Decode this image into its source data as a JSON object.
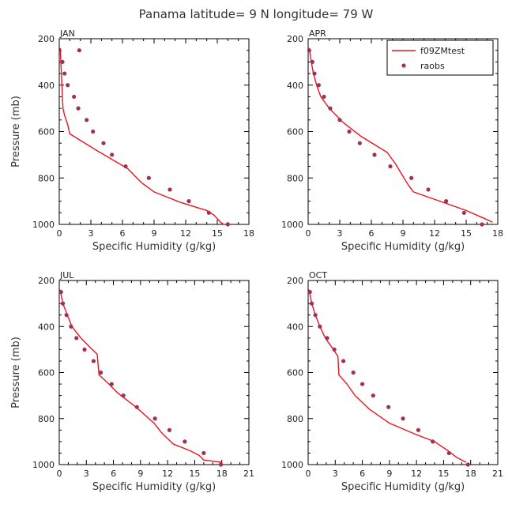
{
  "figure_title": "Panama  latitude= 9 N longitude= 79 W",
  "legend": {
    "model_label": "f09ZMtest",
    "obs_label": "raobs"
  },
  "colors": {
    "model": "#e8141e",
    "obs": "#a0305a",
    "axis": "#000000"
  },
  "chart_data": [
    {
      "type": "line",
      "panel": "JAN",
      "xlabel": "Specific Humidity (g/kg)",
      "ylabel": "Pressure (mb)",
      "xlim": [
        0,
        18
      ],
      "xticks": [
        0,
        3,
        6,
        9,
        12,
        15,
        18
      ],
      "ylim": [
        1000,
        200
      ],
      "yticks": [
        200,
        400,
        600,
        800,
        1000
      ],
      "series": [
        {
          "name": "f09ZMtest",
          "kind": "line",
          "points": [
            [
              0.1,
              240
            ],
            [
              0.15,
              300
            ],
            [
              0.2,
              350
            ],
            [
              0.25,
              400
            ],
            [
              0.3,
              450
            ],
            [
              0.35,
              500
            ],
            [
              0.5,
              530
            ],
            [
              0.8,
              570
            ],
            [
              1.0,
              610
            ],
            [
              3.5,
              680
            ],
            [
              6.5,
              760
            ],
            [
              7.8,
              820
            ],
            [
              9.0,
              860
            ],
            [
              11.5,
              905
            ],
            [
              14.0,
              940
            ],
            [
              14.7,
              960
            ],
            [
              15.3,
              990
            ],
            [
              15.6,
              1000
            ]
          ]
        },
        {
          "name": "raobs",
          "kind": "scatter",
          "points": [
            [
              1.9,
              250
            ],
            [
              0.3,
              300
            ],
            [
              0.5,
              350
            ],
            [
              0.8,
              400
            ],
            [
              1.4,
              450
            ],
            [
              1.8,
              500
            ],
            [
              2.6,
              550
            ],
            [
              3.2,
              600
            ],
            [
              4.2,
              650
            ],
            [
              5.0,
              700
            ],
            [
              6.3,
              750
            ],
            [
              8.5,
              800
            ],
            [
              10.5,
              850
            ],
            [
              12.3,
              900
            ],
            [
              14.2,
              950
            ],
            [
              16.0,
              1000
            ]
          ]
        }
      ]
    },
    {
      "type": "line",
      "panel": "APR",
      "xlabel": "Specific Humidity (g/kg)",
      "ylabel": "Pressure (mb)",
      "xlim": [
        0,
        18
      ],
      "xticks": [
        0,
        3,
        6,
        9,
        12,
        15,
        18
      ],
      "ylim": [
        1000,
        200
      ],
      "yticks": [
        200,
        400,
        600,
        800,
        1000
      ],
      "series": [
        {
          "name": "f09ZMtest",
          "kind": "line",
          "points": [
            [
              0.1,
              240
            ],
            [
              0.3,
              300
            ],
            [
              0.5,
              350
            ],
            [
              0.8,
              400
            ],
            [
              1.2,
              450
            ],
            [
              2.0,
              500
            ],
            [
              3.3,
              560
            ],
            [
              5.0,
              620
            ],
            [
              7.5,
              690
            ],
            [
              8.3,
              740
            ],
            [
              9.1,
              800
            ],
            [
              9.5,
              830
            ],
            [
              10.0,
              860
            ],
            [
              12.5,
              900
            ],
            [
              15.0,
              940
            ],
            [
              16.5,
              970
            ],
            [
              17.5,
              990
            ]
          ]
        },
        {
          "name": "raobs",
          "kind": "scatter",
          "points": [
            [
              0.1,
              250
            ],
            [
              0.4,
              300
            ],
            [
              0.6,
              350
            ],
            [
              1.0,
              400
            ],
            [
              1.5,
              450
            ],
            [
              2.1,
              500
            ],
            [
              3.0,
              550
            ],
            [
              3.9,
              600
            ],
            [
              4.9,
              650
            ],
            [
              6.3,
              700
            ],
            [
              7.8,
              750
            ],
            [
              9.8,
              800
            ],
            [
              11.4,
              850
            ],
            [
              13.1,
              900
            ],
            [
              14.8,
              950
            ],
            [
              16.5,
              1000
            ]
          ]
        }
      ]
    },
    {
      "type": "line",
      "panel": "JUL",
      "xlabel": "Specific Humidity (g/kg)",
      "ylabel": "Pressure (mb)",
      "xlim": [
        0,
        21
      ],
      "xticks": [
        0,
        3,
        6,
        9,
        12,
        15,
        18,
        21
      ],
      "ylim": [
        1000,
        200
      ],
      "yticks": [
        200,
        400,
        600,
        800,
        1000
      ],
      "series": [
        {
          "name": "f09ZMtest",
          "kind": "line",
          "points": [
            [
              0.1,
              240
            ],
            [
              0.4,
              300
            ],
            [
              0.9,
              350
            ],
            [
              1.4,
              400
            ],
            [
              2.4,
              450
            ],
            [
              3.4,
              490
            ],
            [
              4.2,
              520
            ],
            [
              4.4,
              610
            ],
            [
              5.5,
              650
            ],
            [
              6.5,
              690
            ],
            [
              8.5,
              750
            ],
            [
              10.5,
              820
            ],
            [
              11.3,
              860
            ],
            [
              12.6,
              910
            ],
            [
              14.5,
              940
            ],
            [
              15.5,
              960
            ],
            [
              16.0,
              980
            ],
            [
              18.0,
              990
            ]
          ]
        },
        {
          "name": "raobs",
          "kind": "scatter",
          "points": [
            [
              0.2,
              250
            ],
            [
              0.4,
              300
            ],
            [
              0.8,
              350
            ],
            [
              1.3,
              400
            ],
            [
              1.9,
              450
            ],
            [
              2.8,
              500
            ],
            [
              3.8,
              550
            ],
            [
              4.6,
              600
            ],
            [
              5.8,
              650
            ],
            [
              7.1,
              700
            ],
            [
              8.6,
              750
            ],
            [
              10.6,
              800
            ],
            [
              12.2,
              850
            ],
            [
              13.9,
              900
            ],
            [
              16.0,
              950
            ],
            [
              17.9,
              1000
            ]
          ]
        }
      ]
    },
    {
      "type": "line",
      "panel": "OCT",
      "xlabel": "Specific Humidity (g/kg)",
      "ylabel": "Pressure (mb)",
      "xlim": [
        0,
        21
      ],
      "xticks": [
        0,
        3,
        6,
        9,
        12,
        15,
        18,
        21
      ],
      "ylim": [
        1000,
        200
      ],
      "yticks": [
        200,
        400,
        600,
        800,
        1000
      ],
      "series": [
        {
          "name": "f09ZMtest",
          "kind": "line",
          "points": [
            [
              0.1,
              240
            ],
            [
              0.4,
              300
            ],
            [
              0.8,
              350
            ],
            [
              1.3,
              400
            ],
            [
              1.9,
              450
            ],
            [
              2.8,
              500
            ],
            [
              3.3,
              530
            ],
            [
              3.4,
              610
            ],
            [
              4.3,
              650
            ],
            [
              5.2,
              700
            ],
            [
              6.8,
              760
            ],
            [
              9.0,
              820
            ],
            [
              12.0,
              870
            ],
            [
              14.0,
              900
            ],
            [
              15.5,
              940
            ],
            [
              16.5,
              970
            ],
            [
              17.5,
              990
            ]
          ]
        },
        {
          "name": "raobs",
          "kind": "scatter",
          "points": [
            [
              0.2,
              250
            ],
            [
              0.4,
              300
            ],
            [
              0.8,
              350
            ],
            [
              1.3,
              400
            ],
            [
              2.1,
              450
            ],
            [
              2.9,
              500
            ],
            [
              3.9,
              550
            ],
            [
              5.0,
              600
            ],
            [
              6.0,
              650
            ],
            [
              7.2,
              700
            ],
            [
              8.9,
              750
            ],
            [
              10.5,
              800
            ],
            [
              12.2,
              850
            ],
            [
              13.8,
              900
            ],
            [
              15.6,
              950
            ],
            [
              17.7,
              1000
            ]
          ]
        }
      ]
    }
  ]
}
